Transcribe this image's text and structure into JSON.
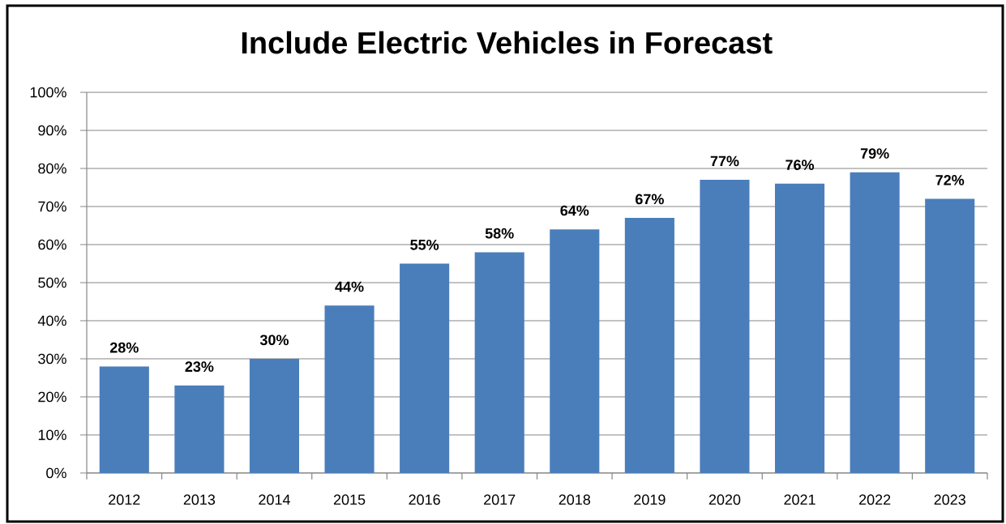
{
  "chart_data": {
    "type": "bar",
    "title": "Include Electric Vehicles in Forecast",
    "categories": [
      "2012",
      "2013",
      "2014",
      "2015",
      "2016",
      "2017",
      "2018",
      "2019",
      "2020",
      "2021",
      "2022",
      "2023"
    ],
    "values": [
      28,
      23,
      30,
      44,
      55,
      58,
      64,
      67,
      77,
      76,
      79,
      72
    ],
    "value_labels": [
      "28%",
      "23%",
      "30%",
      "44%",
      "55%",
      "58%",
      "64%",
      "67%",
      "77%",
      "76%",
      "79%",
      "72%"
    ],
    "color": "#4a7ebb",
    "ylim": [
      0,
      100
    ],
    "yticks": [
      {
        "value": 0,
        "label": "0%"
      },
      {
        "value": 10,
        "label": "10%"
      },
      {
        "value": 20,
        "label": "20%"
      },
      {
        "value": 30,
        "label": "30%"
      },
      {
        "value": 40,
        "label": "40%"
      },
      {
        "value": 50,
        "label": "50%"
      },
      {
        "value": 60,
        "label": "60%"
      },
      {
        "value": 70,
        "label": "70%"
      },
      {
        "value": 80,
        "label": "80%"
      },
      {
        "value": 90,
        "label": "90%"
      },
      {
        "value": 100,
        "label": "100%"
      }
    ],
    "grid": "y"
  }
}
